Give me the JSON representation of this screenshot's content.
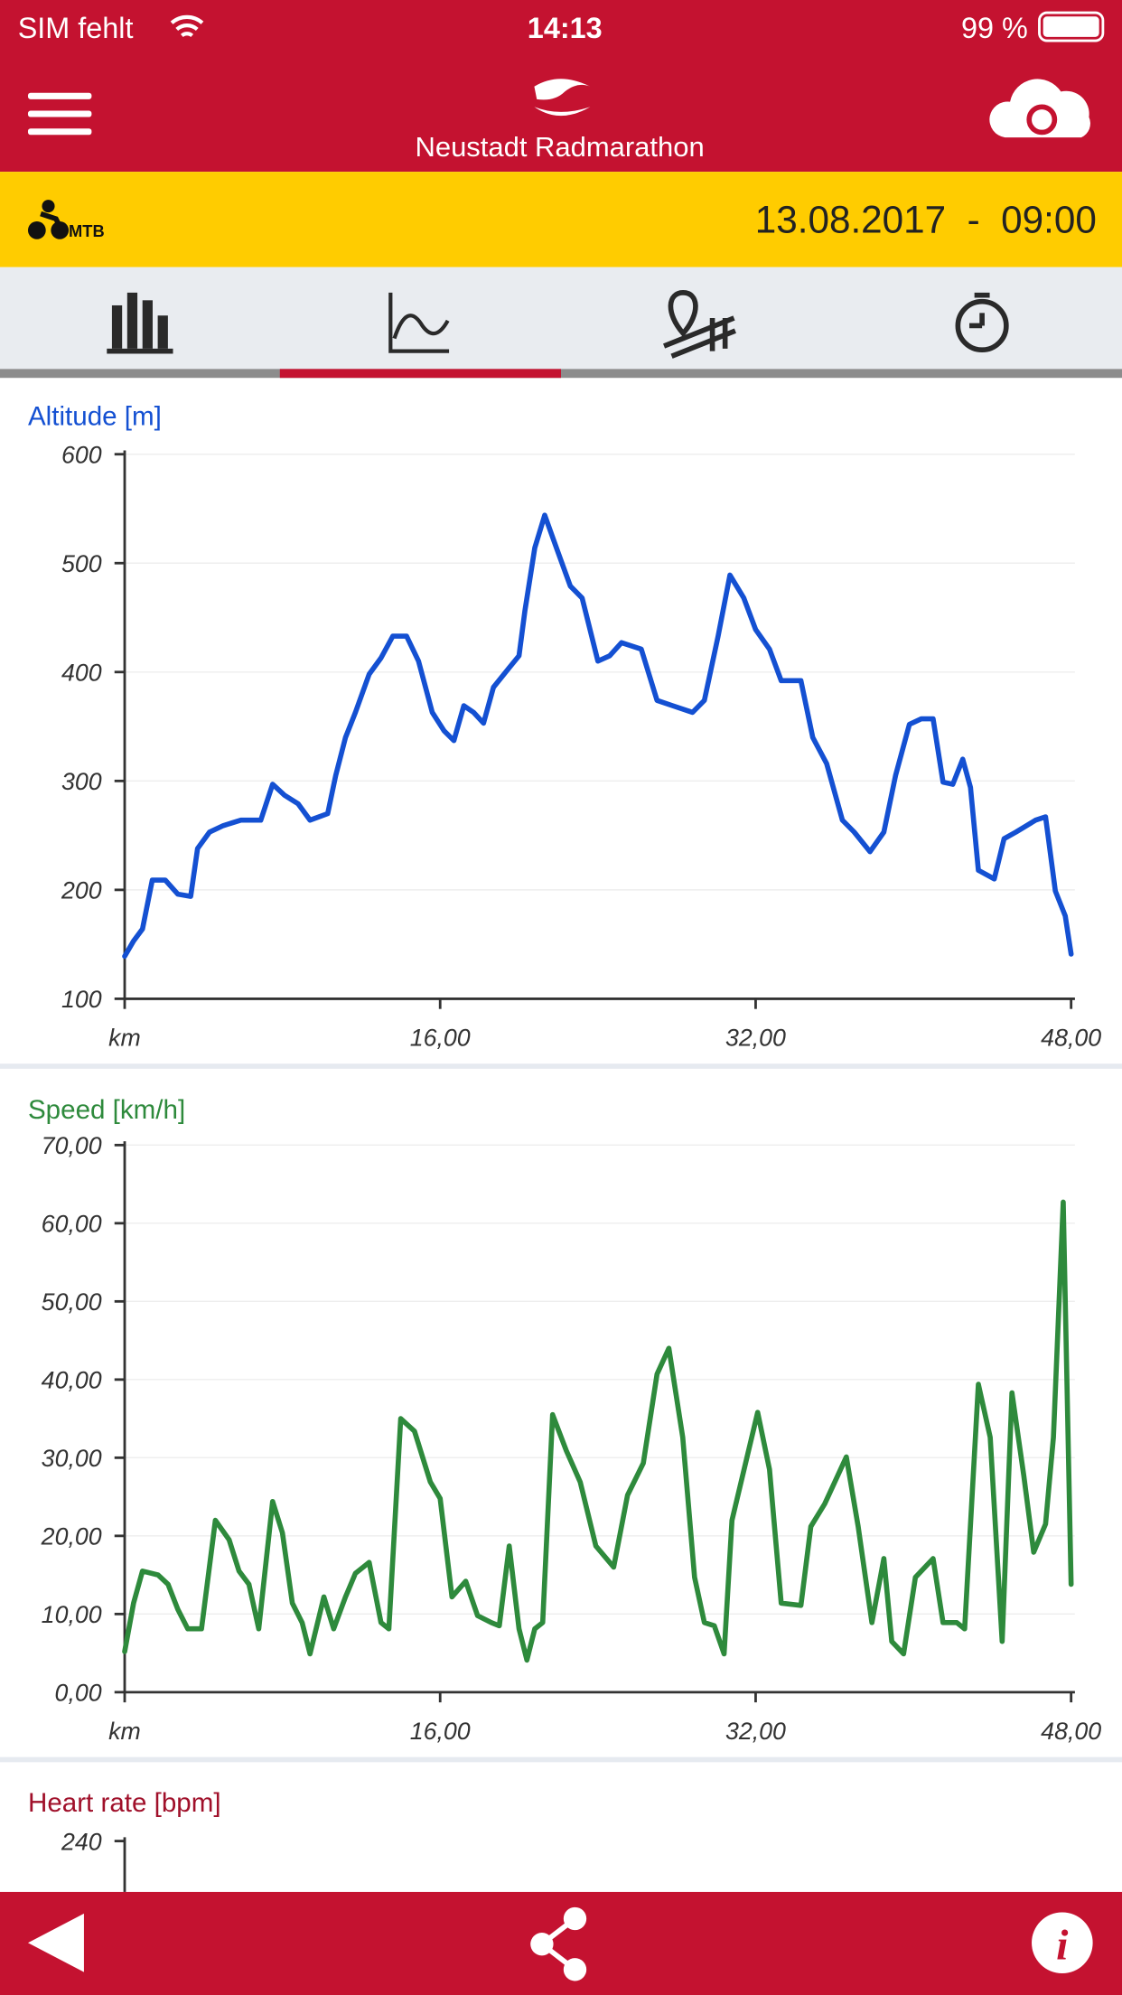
{
  "status_bar": {
    "carrier": "SIM fehlt",
    "time": "14:13",
    "battery": "99 %"
  },
  "header": {
    "title": "Neustadt Radmarathon"
  },
  "event_bar": {
    "sport": "MTB",
    "datetime": "13.08.2017  -  09:00"
  },
  "charts": [
    {
      "type": "line",
      "title": "Altitude [m]",
      "color": "#1450d2",
      "x_label": "km",
      "xlim": [
        0,
        48
      ],
      "ylim": [
        100,
        600
      ],
      "xticks": [
        {
          "value": 16,
          "label": "16,00"
        },
        {
          "value": 32,
          "label": "32,00"
        },
        {
          "value": 48,
          "label": "48,00"
        }
      ],
      "yticks": [
        100,
        200,
        300,
        400,
        500,
        600
      ],
      "x": [
        0,
        0.45,
        0.9,
        1.4,
        2.06,
        2.7,
        3.35,
        3.7,
        4.3,
        5,
        5.9,
        6.9,
        7.5,
        8.1,
        8.8,
        9.4,
        10.3,
        10.7,
        11.2,
        11.7,
        12.4,
        13,
        13.6,
        14.3,
        14.9,
        15.6,
        16.2,
        16.7,
        17.2,
        17.7,
        18.2,
        18.7,
        19.5,
        20,
        20.3,
        20.8,
        21.3,
        21.9,
        22.6,
        23.2,
        24,
        24.6,
        25.2,
        26.2,
        27,
        27.8,
        28.8,
        29.4,
        30.1,
        30.7,
        31.4,
        32,
        32.7,
        33.3,
        34.3,
        34.9,
        35.6,
        36.4,
        37,
        37.8,
        38.5,
        39.1,
        39.8,
        40.4,
        41,
        41.5,
        42,
        42.5,
        42.9,
        43.3,
        44.1,
        44.6,
        45.2,
        46.2,
        46.7,
        47.2,
        47.7,
        48
      ],
      "values": [
        139,
        153,
        164,
        209,
        209,
        196,
        194,
        238,
        253,
        259,
        264,
        264,
        297,
        287,
        279,
        264,
        270,
        305,
        340,
        363,
        398,
        413,
        433,
        433,
        410,
        363,
        346,
        337,
        369,
        363,
        353,
        386,
        404,
        415,
        456,
        514,
        544,
        514,
        479,
        468,
        410,
        415,
        427,
        421,
        374,
        369,
        363,
        374,
        433,
        489,
        468,
        439,
        421,
        392,
        392,
        340,
        316,
        264,
        253,
        235,
        253,
        305,
        352,
        357,
        357,
        299,
        297,
        320,
        294,
        218,
        210,
        247,
        253,
        264,
        267,
        199,
        176,
        141
      ]
    },
    {
      "type": "line",
      "title": "Speed [km/h]",
      "color": "#2e8a3c",
      "x_label": "km",
      "xlim": [
        0,
        48
      ],
      "ylim": [
        0,
        70
      ],
      "xticks": [
        {
          "value": 16,
          "label": "16,00"
        },
        {
          "value": 32,
          "label": "32,00"
        },
        {
          "value": 48,
          "label": "48,00"
        }
      ],
      "yticks": [
        {
          "value": 0,
          "label": "0,00"
        },
        {
          "value": 10,
          "label": "10,00"
        },
        {
          "value": 20,
          "label": "20,00"
        },
        {
          "value": 30,
          "label": "30,00"
        },
        {
          "value": 40,
          "label": "40,00"
        },
        {
          "value": 50,
          "label": "50,00"
        },
        {
          "value": 60,
          "label": "60,00"
        },
        {
          "value": 70,
          "label": "70,00"
        }
      ],
      "x": [
        0,
        0.45,
        0.9,
        1.7,
        2.2,
        2.7,
        3.2,
        3.9,
        4.6,
        5.3,
        5.8,
        6.3,
        6.8,
        7.5,
        8,
        8.5,
        9,
        9.4,
        10.1,
        10.6,
        11.2,
        11.7,
        12.4,
        13,
        13.4,
        14,
        14.7,
        15.5,
        16,
        16.6,
        17.3,
        17.9,
        18.6,
        19,
        19.5,
        20,
        20.4,
        20.8,
        21.2,
        21.7,
        22.4,
        23.1,
        23.9,
        24.8,
        25.5,
        26.3,
        27,
        27.6,
        28.3,
        28.9,
        29.4,
        29.9,
        30.4,
        30.8,
        32.1,
        32.7,
        33.3,
        34.3,
        34.8,
        35.5,
        36.6,
        37.2,
        37.9,
        38.5,
        38.9,
        39.5,
        40.1,
        41,
        41.5,
        42.2,
        42.6,
        43.3,
        43.9,
        44.5,
        45,
        45.6,
        46.1,
        46.7,
        47.1,
        47.6,
        48
      ],
      "values": [
        5.2,
        11.4,
        15.5,
        15,
        13.8,
        10.6,
        8.1,
        8.1,
        22,
        19.5,
        15.5,
        13.8,
        8.1,
        24.4,
        20.4,
        11.4,
        8.9,
        4.9,
        12.2,
        8.1,
        12.2,
        15.2,
        16.6,
        8.9,
        8.1,
        35,
        33.4,
        26.9,
        24.8,
        12.2,
        14.2,
        9.8,
        8.9,
        8.5,
        18.7,
        8.1,
        4.1,
        8.1,
        8.9,
        35.5,
        30.9,
        26.9,
        18.7,
        16,
        25.2,
        29.3,
        40.7,
        44,
        32.6,
        14.7,
        8.9,
        8.5,
        4.9,
        22,
        35.8,
        28.5,
        11.4,
        11.1,
        21.2,
        24.1,
        30.1,
        21.2,
        8.9,
        17.1,
        6.5,
        4.9,
        14.7,
        17.1,
        8.9,
        8.9,
        8.1,
        39.4,
        32.6,
        6.5,
        38.3,
        27.7,
        17.9,
        21.5,
        32.6,
        62.7,
        13.8
      ]
    },
    {
      "type": "line",
      "title": "Heart rate [bpm]",
      "color": "#a0102a",
      "yticks": [
        240
      ]
    }
  ]
}
